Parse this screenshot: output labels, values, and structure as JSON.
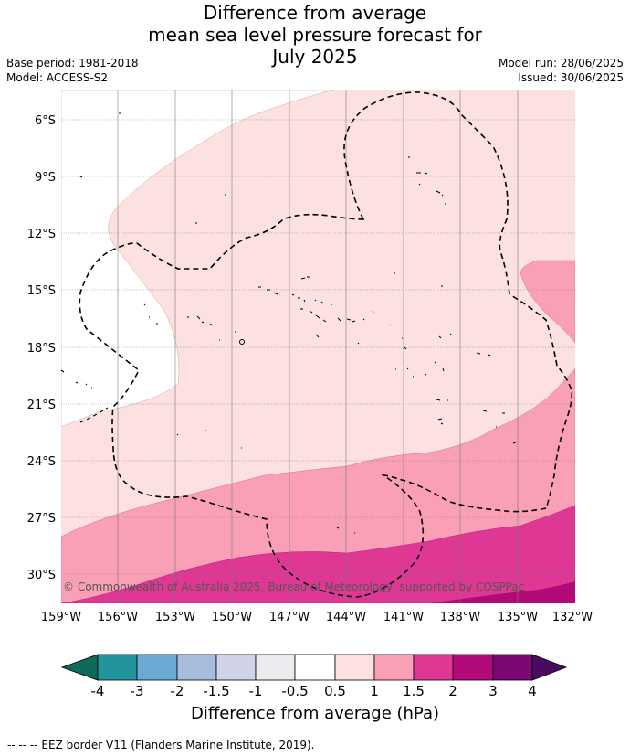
{
  "title": {
    "line1": "Difference from average",
    "line2": "mean sea level pressure forecast for",
    "line3": "July 2025"
  },
  "meta": {
    "base_period": "Base period: 1981-2018",
    "model": "Model: ACCESS-S2",
    "model_run": "Model run: 28/06/2025",
    "issued": "Issued: 30/06/2025"
  },
  "map": {
    "lat_labels": [
      "6°S",
      "9°S",
      "12°S",
      "15°S",
      "18°S",
      "21°S",
      "24°S",
      "27°S",
      "30°S"
    ],
    "lon_labels": [
      "159°W",
      "156°W",
      "153°W",
      "150°W",
      "147°W",
      "144°W",
      "141°W",
      "138°W",
      "135°W",
      "132°W"
    ],
    "copyright": "© Commonwealth of Australia 2025, Bureau of Meteorology, supported by COSPPac"
  },
  "colorbar": {
    "title": "Difference from average (hPa)",
    "tick_labels": [
      "-4",
      "-3",
      "-2",
      "-1.5",
      "-1",
      "-0.5",
      "0.5",
      "1",
      "1.5",
      "2",
      "3",
      "4"
    ],
    "colors": {
      "below_-4": "#0f6a5c",
      "-4_-3": "#21959b",
      "-3_-2": "#6aaad2",
      "-2_-1.5": "#a8bcdc",
      "-1.5_-1": "#d0d2e8",
      "-1_-0.5": "#ecebf0",
      "-0.5_0.5": "#ffffff",
      "0.5_1": "#fde0e0",
      "1_1.5": "#f9a0b6",
      "1.5_2": "#df3894",
      "2_3": "#b30a7a",
      "3_4": "#7c0874",
      "above_4": "#4a0a60"
    }
  },
  "footnote": "-- -- -- EEZ border V11 (Flanders Marine Institute, 2019)."
}
